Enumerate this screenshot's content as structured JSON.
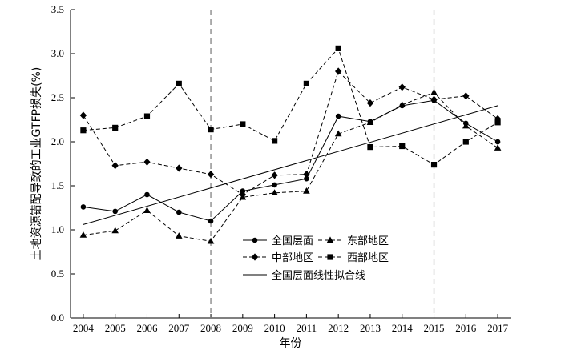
{
  "chart_data": {
    "type": "line",
    "xlabel": "年份",
    "ylabel": "土地资源错配导致的工业GTFP损失(%)",
    "x": [
      2004,
      2005,
      2006,
      2007,
      2008,
      2009,
      2010,
      2011,
      2012,
      2013,
      2014,
      2015,
      2016,
      2017
    ],
    "xlim": [
      2003.6,
      2017.4
    ],
    "ylim": [
      0.0,
      3.5
    ],
    "yticks": [
      "0.0",
      "0.5",
      "1.0",
      "1.5",
      "2.0",
      "2.5",
      "3.0",
      "3.5"
    ],
    "grid": false,
    "reference_lines_x": [
      2008,
      2015
    ],
    "legend_position": "bottom-center",
    "series": [
      {
        "name": "全国层面",
        "marker": "circle",
        "line": "solid",
        "values": [
          1.26,
          1.21,
          1.4,
          1.2,
          1.1,
          1.44,
          1.51,
          1.58,
          2.29,
          2.23,
          2.41,
          2.47,
          2.21,
          2.0
        ]
      },
      {
        "name": "东部地区",
        "marker": "triangle",
        "line": "dashed",
        "values": [
          0.94,
          0.99,
          1.22,
          0.93,
          0.87,
          1.37,
          1.42,
          1.44,
          2.09,
          2.22,
          2.42,
          2.56,
          2.18,
          1.93
        ]
      },
      {
        "name": "中部地区",
        "marker": "diamond",
        "line": "dashed",
        "values": [
          2.3,
          1.73,
          1.77,
          1.7,
          1.63,
          1.4,
          1.62,
          1.63,
          2.8,
          2.44,
          2.62,
          2.48,
          2.52,
          2.26
        ]
      },
      {
        "name": "西部地区",
        "marker": "square",
        "line": "dashed",
        "values": [
          2.13,
          2.16,
          2.29,
          2.66,
          2.14,
          2.2,
          2.01,
          2.66,
          3.06,
          1.94,
          1.95,
          1.74,
          2.0,
          2.22
        ]
      },
      {
        "name": "全国层面线性拟合线",
        "marker": "none",
        "line": "solid",
        "values": [
          1.06,
          2.41
        ],
        "x": [
          2004,
          2017
        ]
      }
    ]
  }
}
